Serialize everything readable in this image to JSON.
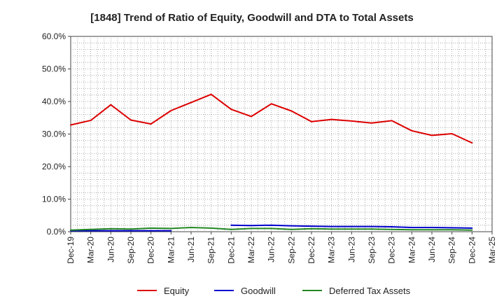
{
  "chart_data": {
    "type": "line",
    "title": "[1848]  Trend of Ratio of Equity, Goodwill and DTA to Total Assets",
    "xlabel": "",
    "ylabel": "",
    "ylim": [
      0,
      60
    ],
    "y_ticks": [
      "0.0%",
      "10.0%",
      "20.0%",
      "30.0%",
      "40.0%",
      "50.0%",
      "60.0%"
    ],
    "y_tick_values": [
      0,
      10,
      20,
      30,
      40,
      50,
      60
    ],
    "x_ticks": [
      "Dec-19",
      "Mar-20",
      "Jun-20",
      "Sep-20",
      "Dec-20",
      "Mar-21",
      "Jun-21",
      "Sep-21",
      "Dec-21",
      "Mar-22",
      "Jun-22",
      "Sep-22",
      "Dec-22",
      "Mar-23",
      "Jun-23",
      "Sep-23",
      "Dec-23",
      "Mar-24",
      "Jun-24",
      "Sep-24",
      "Dec-24",
      "Mar-25"
    ],
    "grid": true,
    "legend_position": "bottom",
    "series": [
      {
        "name": "Equity",
        "color": "#dd0000",
        "values": [
          32.8,
          34.2,
          39.0,
          34.3,
          33.1,
          37.2,
          39.7,
          42.2,
          37.6,
          35.4,
          39.3,
          37.1,
          33.8,
          34.5,
          34.0,
          33.4,
          34.1,
          31.0,
          29.6,
          30.1,
          27.3,
          null
        ]
      },
      {
        "name": "Goodwill",
        "color": "#0000cc",
        "values": [
          0.3,
          0.3,
          0.3,
          0.3,
          0.3,
          0.3,
          null,
          null,
          2.0,
          1.9,
          2.0,
          1.8,
          1.7,
          1.6,
          1.6,
          1.6,
          1.5,
          1.3,
          1.3,
          1.2,
          1.1,
          null
        ]
      },
      {
        "name": "Deferred Tax Assets",
        "color": "#228822",
        "values": [
          0.5,
          0.7,
          0.9,
          0.8,
          1.1,
          1.0,
          1.3,
          1.1,
          0.7,
          1.0,
          1.0,
          0.7,
          0.9,
          0.8,
          0.8,
          0.8,
          0.7,
          0.6,
          0.6,
          0.6,
          0.5,
          null
        ]
      }
    ]
  }
}
